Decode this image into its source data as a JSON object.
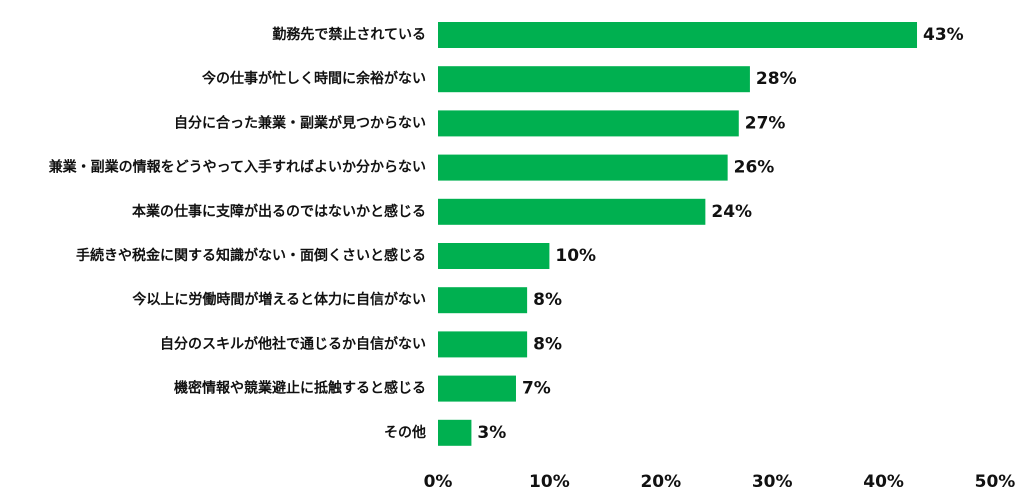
{
  "chart_data": {
    "type": "bar",
    "orientation": "horizontal",
    "categories": [
      "勤務先で禁止されている",
      "今の仕事が忙しく時間に余裕がない",
      "自分に合った兼業・副業が見つからない",
      "兼業・副業の情報をどうやって入手すればよいか分からない",
      "本業の仕事に支障が出るのではないかと感じる",
      "手続きや税金に関する知識がない・面倒くさいと感じる",
      "今以上に労働時間が増えると体力に自信がない",
      "自分のスキルが他社で通じるか自信がない",
      "機密情報や競業避止に抵触すると感じる",
      "その他"
    ],
    "values": [
      43,
      28,
      27,
      26,
      24,
      10,
      8,
      8,
      7,
      3
    ],
    "value_labels": [
      "43%",
      "28%",
      "27%",
      "26%",
      "24%",
      "10%",
      "8%",
      "8%",
      "7%",
      "3%"
    ],
    "xlim": [
      0,
      50
    ],
    "x_ticks": [
      0,
      10,
      20,
      30,
      40,
      50
    ],
    "x_tick_labels": [
      "0%",
      "10%",
      "20%",
      "30%",
      "40%",
      "50%"
    ],
    "title": "",
    "xlabel": "",
    "ylabel": "",
    "grid": false,
    "legend": "none",
    "bar_color": "#00b050"
  }
}
